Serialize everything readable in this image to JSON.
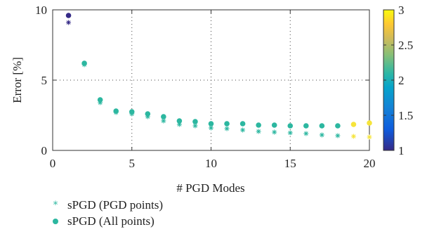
{
  "chart_data": {
    "type": "scatter",
    "title": "",
    "xlabel": "# PGD Modes",
    "ylabel": "Error [%]",
    "xlim": [
      0,
      20
    ],
    "ylim": [
      0,
      10
    ],
    "xticks": [
      0,
      5,
      10,
      15,
      20
    ],
    "yticks": [
      0,
      5,
      10
    ],
    "grid": true,
    "legend_position": "below",
    "colormap": {
      "name": "parula",
      "range": [
        1,
        3
      ],
      "ticks": [
        "1",
        "1.5",
        "2",
        "2.5",
        "3"
      ]
    },
    "series": [
      {
        "name": "sPGD (PGD points)",
        "marker": "asterisk",
        "x": [
          1,
          2,
          3,
          4,
          5,
          6,
          7,
          8,
          9,
          10,
          11,
          12,
          13,
          14,
          15,
          16,
          17,
          18,
          19,
          20
        ],
        "y": [
          9.1,
          6.1,
          3.4,
          2.7,
          2.6,
          2.4,
          2.1,
          1.85,
          1.75,
          1.6,
          1.55,
          1.45,
          1.35,
          1.3,
          1.25,
          1.2,
          1.1,
          1.05,
          1.0,
          0.95
        ],
        "color_values": [
          1,
          2,
          2,
          2,
          2,
          2,
          2,
          2,
          2,
          2,
          2,
          2,
          2,
          2,
          2,
          2,
          2,
          2,
          3,
          3
        ]
      },
      {
        "name": "sPGD (All points)",
        "marker": "dot",
        "x": [
          1,
          2,
          3,
          4,
          5,
          6,
          7,
          8,
          9,
          10,
          11,
          12,
          13,
          14,
          15,
          16,
          17,
          18,
          19,
          20
        ],
        "y": [
          9.6,
          6.2,
          3.6,
          2.8,
          2.75,
          2.6,
          2.4,
          2.1,
          2.05,
          1.9,
          1.9,
          1.9,
          1.8,
          1.8,
          1.75,
          1.75,
          1.75,
          1.75,
          1.85,
          1.95
        ],
        "color_values": [
          1,
          2,
          2,
          2,
          2,
          2,
          2,
          2,
          2,
          2,
          2,
          2,
          2,
          2,
          2,
          2,
          2,
          2,
          3,
          3
        ]
      }
    ],
    "legend": [
      {
        "label": "sPGD (PGD points)",
        "marker": "*"
      },
      {
        "label": "sPGD (All points)",
        "marker": "●"
      }
    ]
  }
}
